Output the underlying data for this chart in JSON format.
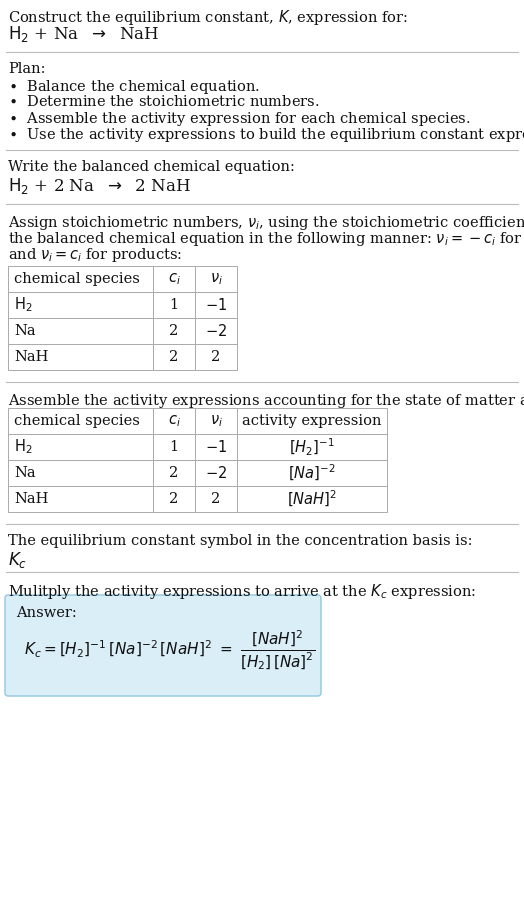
{
  "title_line1": "Construct the equilibrium constant, $K$, expression for:",
  "title_line2": "$H_2$ + Na  $\\rightarrow$  NaH",
  "plan_header": "Plan:",
  "plan_steps": [
    "\\bullet  Balance the chemical equation.",
    "\\bullet  Determine the stoichiometric numbers.",
    "\\bullet  Assemble the activity expression for each chemical species.",
    "\\bullet  Use the activity expressions to build the equilibrium constant expression."
  ],
  "balanced_header": "Write the balanced chemical equation:",
  "balanced_eq": "$H_2$ + 2 Na  $\\rightarrow$  2 NaH",
  "assign_para1": "Assign stoichiometric numbers, $\\nu_i$, using the stoichiometric coefficients, $c_i$, from",
  "assign_para2": "the balanced chemical equation in the following manner: $\\nu_i = -c_i$ for reactants",
  "assign_para3": "and $\\nu_i = c_i$ for products:",
  "table1_headers": [
    "chemical species",
    "$c_i$",
    "$\\nu_i$"
  ],
  "table1_rows": [
    [
      "$H_2$",
      "1",
      "$-1$"
    ],
    [
      "Na",
      "2",
      "$-2$"
    ],
    [
      "NaH",
      "2",
      "2"
    ]
  ],
  "assemble_text": "Assemble the activity expressions accounting for the state of matter and $\\nu_i$:",
  "table2_headers": [
    "chemical species",
    "$c_i$",
    "$\\nu_i$",
    "activity expression"
  ],
  "table2_rows": [
    [
      "$H_2$",
      "1",
      "$-1$",
      "$[H_2]^{-1}$"
    ],
    [
      "Na",
      "2",
      "$-2$",
      "$[Na]^{-2}$"
    ],
    [
      "NaH",
      "2",
      "2",
      "$[NaH]^2$"
    ]
  ],
  "kc_text": "The equilibrium constant symbol in the concentration basis is:",
  "kc_symbol": "$K_c$",
  "multiply_text": "Mulitply the activity expressions to arrive at the $K_c$ expression:",
  "answer_label": "Answer:",
  "answer_formula": "$K_c = [H_2]^{-1} [Na]^{-2} [NaH]^2 = \\dfrac{[NaH]^2}{[H_2]\\,[Na]^2}$",
  "bg_color": "#ffffff",
  "sep_color": "#bbbbbb",
  "answer_box_bg": "#daeef8",
  "answer_box_border": "#90c8e0",
  "text_color": "#111111",
  "table_border": "#aaaaaa",
  "font_size": 10.5,
  "fig_width": 5.24,
  "fig_height": 8.99,
  "dpi": 100
}
